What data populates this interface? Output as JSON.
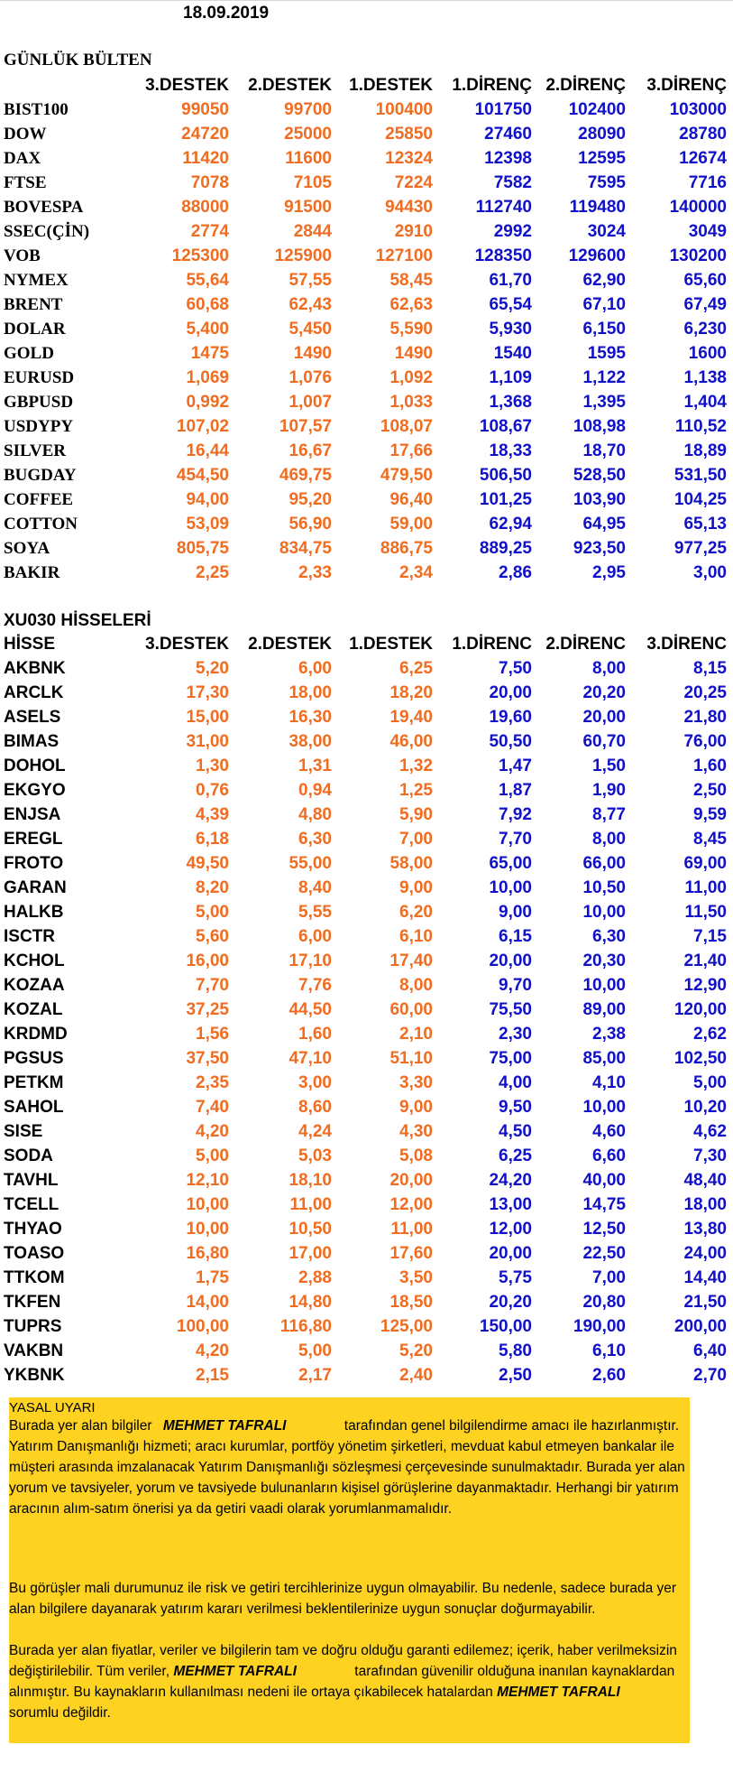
{
  "date": "18.09.2019",
  "bulletin": {
    "title": "GÜNLÜK BÜLTEN",
    "headers": [
      "3.DESTEK",
      "2.DESTEK",
      "1.DESTEK",
      "1.DİRENÇ",
      "2.DİRENÇ",
      "3.DİRENÇ"
    ],
    "rows": [
      {
        "name": "BIST100",
        "v": [
          "99050",
          "99700",
          "100400",
          "101750",
          "102400",
          "103000"
        ]
      },
      {
        "name": "DOW",
        "v": [
          "24720",
          "25000",
          "25850",
          "27460",
          "28090",
          "28780"
        ]
      },
      {
        "name": "DAX",
        "v": [
          "11420",
          "11600",
          "12324",
          "12398",
          "12595",
          "12674"
        ]
      },
      {
        "name": "FTSE",
        "v": [
          "7078",
          "7105",
          "7224",
          "7582",
          "7595",
          "7716"
        ]
      },
      {
        "name": "BOVESPA",
        "v": [
          "88000",
          "91500",
          "94430",
          "112740",
          "119480",
          "140000"
        ]
      },
      {
        "name": "SSEC(ÇİN)",
        "v": [
          "2774",
          "2844",
          "2910",
          "2992",
          "3024",
          "3049"
        ]
      },
      {
        "name": "VOB",
        "v": [
          "125300",
          "125900",
          "127100",
          "128350",
          "129600",
          "130200"
        ]
      },
      {
        "name": "NYMEX",
        "v": [
          "55,64",
          "57,55",
          "58,45",
          "61,70",
          "62,90",
          "65,60"
        ]
      },
      {
        "name": "BRENT",
        "v": [
          "60,68",
          "62,43",
          "62,63",
          "65,54",
          "67,10",
          "67,49"
        ]
      },
      {
        "name": "DOLAR",
        "v": [
          "5,400",
          "5,450",
          "5,590",
          "5,930",
          "6,150",
          "6,230"
        ]
      },
      {
        "name": "GOLD",
        "v": [
          "1475",
          "1490",
          "1490",
          "1540",
          "1595",
          "1600"
        ]
      },
      {
        "name": "EURUSD",
        "v": [
          "1,069",
          "1,076",
          "1,092",
          "1,109",
          "1,122",
          "1,138"
        ]
      },
      {
        "name": "GBPUSD",
        "v": [
          "0,992",
          "1,007",
          "1,033",
          "1,368",
          "1,395",
          "1,404"
        ]
      },
      {
        "name": "USDYPY",
        "v": [
          "107,02",
          "107,57",
          "108,07",
          "108,67",
          "108,98",
          "110,52"
        ]
      },
      {
        "name": "SILVER",
        "v": [
          "16,44",
          "16,67",
          "17,66",
          "18,33",
          "18,70",
          "18,89"
        ]
      },
      {
        "name": "BUGDAY",
        "v": [
          "454,50",
          "469,75",
          "479,50",
          "506,50",
          "528,50",
          "531,50"
        ]
      },
      {
        "name": "COFFEE",
        "v": [
          "94,00",
          "95,20",
          "96,40",
          "101,25",
          "103,90",
          "104,25"
        ]
      },
      {
        "name": "COTTON",
        "v": [
          "53,09",
          "56,90",
          "59,00",
          "62,94",
          "64,95",
          "65,13"
        ]
      },
      {
        "name": "SOYA",
        "v": [
          "805,75",
          "834,75",
          "886,75",
          "889,25",
          "923,50",
          "977,25"
        ]
      },
      {
        "name": "BAKIR",
        "v": [
          "2,25",
          "2,33",
          "2,34",
          "2,86",
          "2,95",
          "3,00"
        ]
      }
    ]
  },
  "xu030": {
    "title": "XU030 HİSSELERİ",
    "first_header": "HİSSE",
    "headers": [
      "3.DESTEK",
      "2.DESTEK",
      "1.DESTEK",
      "1.DİRENC",
      "2.DİRENC",
      "3.DİRENC"
    ],
    "rows": [
      {
        "name": "AKBNK",
        "v": [
          "5,20",
          "6,00",
          "6,25",
          "7,50",
          "8,00",
          "8,15"
        ]
      },
      {
        "name": "ARCLK",
        "v": [
          "17,30",
          "18,00",
          "18,20",
          "20,00",
          "20,20",
          "20,25"
        ]
      },
      {
        "name": "ASELS",
        "v": [
          "15,00",
          "16,30",
          "19,40",
          "19,60",
          "20,00",
          "21,80"
        ]
      },
      {
        "name": "BIMAS",
        "v": [
          "31,00",
          "38,00",
          "46,00",
          "50,50",
          "60,70",
          "76,00"
        ]
      },
      {
        "name": "DOHOL",
        "v": [
          "1,30",
          "1,31",
          "1,32",
          "1,47",
          "1,50",
          "1,60"
        ]
      },
      {
        "name": "EKGYO",
        "v": [
          "0,76",
          "0,94",
          "1,25",
          "1,87",
          "1,90",
          "2,50"
        ]
      },
      {
        "name": "ENJSA",
        "v": [
          "4,39",
          "4,80",
          "5,90",
          "7,92",
          "8,77",
          "9,59"
        ]
      },
      {
        "name": "EREGL",
        "v": [
          "6,18",
          "6,30",
          "7,00",
          "7,70",
          "8,00",
          "8,45"
        ]
      },
      {
        "name": "FROTO",
        "v": [
          "49,50",
          "55,00",
          "58,00",
          "65,00",
          "66,00",
          "69,00"
        ]
      },
      {
        "name": "GARAN",
        "v": [
          "8,20",
          "8,40",
          "9,00",
          "10,00",
          "10,50",
          "11,00"
        ]
      },
      {
        "name": "HALKB",
        "v": [
          "5,00",
          "5,55",
          "6,20",
          "9,00",
          "10,00",
          "11,50"
        ]
      },
      {
        "name": "ISCTR",
        "v": [
          "5,60",
          "6,00",
          "6,10",
          "6,15",
          "6,30",
          "7,15"
        ]
      },
      {
        "name": "KCHOL",
        "v": [
          "16,00",
          "17,10",
          "17,40",
          "20,00",
          "20,30",
          "21,40"
        ]
      },
      {
        "name": "KOZAA",
        "v": [
          "7,70",
          "7,76",
          "8,00",
          "9,70",
          "10,00",
          "12,90"
        ]
      },
      {
        "name": "KOZAL",
        "v": [
          "37,25",
          "44,50",
          "60,00",
          "75,50",
          "89,00",
          "120,00"
        ]
      },
      {
        "name": "KRDMD",
        "v": [
          "1,56",
          "1,60",
          "2,10",
          "2,30",
          "2,38",
          "2,62"
        ]
      },
      {
        "name": "PGSUS",
        "v": [
          "37,50",
          "47,10",
          "51,10",
          "75,00",
          "85,00",
          "102,50"
        ]
      },
      {
        "name": "PETKM",
        "v": [
          "2,35",
          "3,00",
          "3,30",
          "4,00",
          "4,10",
          "5,00"
        ]
      },
      {
        "name": "SAHOL",
        "v": [
          "7,40",
          "8,60",
          "9,00",
          "9,50",
          "10,00",
          "10,20"
        ]
      },
      {
        "name": "SISE",
        "v": [
          "4,20",
          "4,24",
          "4,30",
          "4,50",
          "4,60",
          "4,62"
        ]
      },
      {
        "name": "SODA",
        "v": [
          "5,00",
          "5,03",
          "5,08",
          "6,25",
          "6,60",
          "7,30"
        ]
      },
      {
        "name": "TAVHL",
        "v": [
          "12,10",
          "18,10",
          "20,00",
          "24,20",
          "40,00",
          "48,40"
        ]
      },
      {
        "name": "TCELL",
        "v": [
          "10,00",
          "11,00",
          "12,00",
          "13,00",
          "14,75",
          "18,00"
        ]
      },
      {
        "name": "THYAO",
        "v": [
          "10,00",
          "10,50",
          "11,00",
          "12,00",
          "12,50",
          "13,80"
        ]
      },
      {
        "name": "TOASO",
        "v": [
          "16,80",
          "17,00",
          "17,60",
          "20,00",
          "22,50",
          "24,00"
        ]
      },
      {
        "name": "TTKOM",
        "v": [
          "1,75",
          "2,88",
          "3,50",
          "5,75",
          "7,00",
          "14,40"
        ]
      },
      {
        "name": "TKFEN",
        "v": [
          "14,00",
          "14,80",
          "18,50",
          "20,20",
          "20,80",
          "21,50"
        ]
      },
      {
        "name": "TUPRS",
        "v": [
          "100,00",
          "116,80",
          "125,00",
          "150,00",
          "190,00",
          "200,00"
        ]
      },
      {
        "name": "VAKBN",
        "v": [
          "4,20",
          "5,00",
          "5,20",
          "5,80",
          "6,10",
          "6,40"
        ]
      },
      {
        "name": "YKBNK",
        "v": [
          "2,15",
          "2,17",
          "2,40",
          "2,50",
          "2,60",
          "2,70"
        ]
      }
    ]
  },
  "disclaimer": {
    "title": "YASAL UYARI",
    "author": "MEHMET TAFRALI",
    "p1_before": "Burada yer alan bilgiler",
    "p1_after": "tarafından genel bilgilendirme amacı ile",
    "p1_rest": "hazırlanmıştır. Yatırım Danışmanlığı hizmeti; aracı kurumlar, portföy yönetim şirketleri, mevduat kabul etmeyen bankalar ile müşteri arasında imzalanacak Yatırım Danışmanlığı sözleşmesi çerçevesinde sunulmaktadır. Burada yer alan yorum ve tavsiyeler, yorum ve tavsiyede bulunanların kişisel görüşlerine dayanmaktadır. Herhangi bir yatırım aracının alım-satım önerisi ya da getiri vaadi olarak yorumlanmamalıdır.",
    "p2": "Bu görüşler mali durumunuz ile risk ve getiri tercihlerinize uygun olmayabilir. Bu nedenle, sadece burada yer alan bilgilere dayanarak yatırım kararı verilmesi beklentilerinize uygun sonuçlar doğurmayabilir.",
    "p3_start": "Burada yer alan fiyatlar, veriler ve bilgilerin tam ve doğru olduğu garanti edilemez; içerik, haber verilmeksizin değiştirilebilir. Tüm veriler,",
    "p3_mid": "tarafından güvenilir olduğuna inanılan kaynaklardan alınmıştır. Bu kaynakların kullanılması nedeni ile ortaya çıkabilecek hatalardan",
    "p3_end": "sorumlu değildir."
  }
}
